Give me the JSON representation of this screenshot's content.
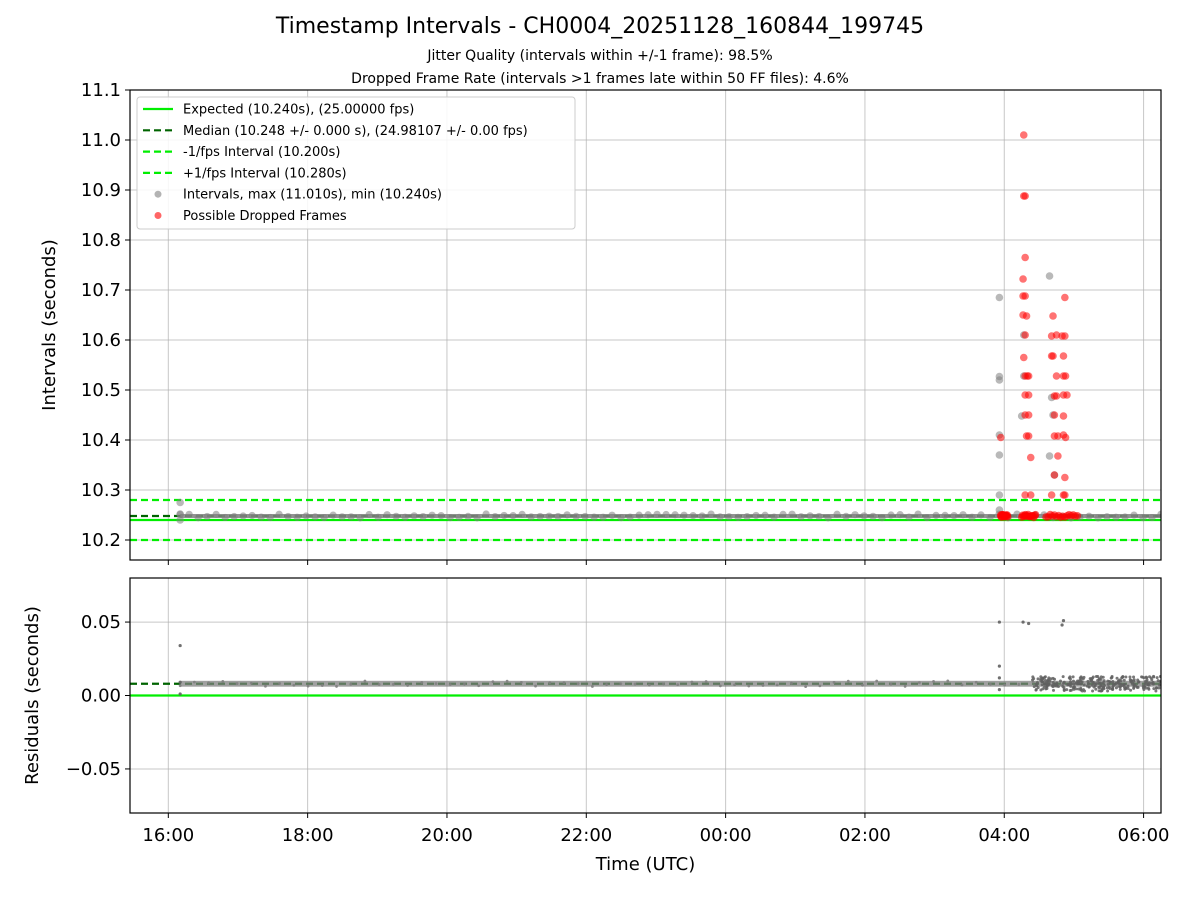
{
  "title": "Timestamp Intervals - CH0004_20251128_160844_199745",
  "subtitles": [
    "Jitter Quality (intervals within +/-1 frame): 98.5%",
    "Dropped Frame Rate (intervals >1 frames late within 50 FF files): 4.6%"
  ],
  "colors": {
    "expected": "#00ee00",
    "median": "#006400",
    "fps_bounds": "#00ee00",
    "intervals": "#808080",
    "dropped": "#ff0000",
    "grid": "#b0b0b0"
  },
  "chart_data": [
    {
      "type": "scatter",
      "name": "intervals",
      "xlabel": "",
      "ylabel": "Intervals (seconds)",
      "x_unit": "hours since 16:00 UTC",
      "xlim": [
        -0.55,
        14.25
      ],
      "ylim": [
        10.16,
        11.1
      ],
      "yticks": [
        10.2,
        10.3,
        10.4,
        10.5,
        10.6,
        10.7,
        10.8,
        10.9,
        11.0,
        11.1
      ],
      "ytick_labels": [
        "10.2",
        "10.3",
        "10.4",
        "10.5",
        "10.6",
        "10.7",
        "10.8",
        "10.9",
        "11.0",
        "11.1"
      ],
      "grid": true,
      "legend_position": "top-left",
      "reference_lines": [
        {
          "name": "Expected (10.240s), (25.00000 fps)",
          "y": 10.24,
          "style": "solid"
        },
        {
          "name": "Median (10.248 +/- 0.000 s), (24.98107 +/- 0.00 fps)",
          "y": 10.248,
          "style": "dashed-dark"
        },
        {
          "name": "-1/fps Interval (10.200s)",
          "y": 10.2,
          "style": "dashed"
        },
        {
          "name": "+1/fps Interval (10.280s)",
          "y": 10.28,
          "style": "dashed"
        }
      ],
      "series": [
        {
          "name": "Intervals, max (11.010s), min (10.240s)",
          "baseline_band": {
            "x_start": 0.17,
            "x_end": 14.25,
            "y_low": 10.244,
            "y_high": 10.252
          },
          "points": [
            [
              0.17,
              10.275
            ],
            [
              0.17,
              10.24
            ],
            [
              0.17,
              10.252
            ],
            [
              11.93,
              10.685
            ],
            [
              11.93,
              10.527
            ],
            [
              11.93,
              10.52
            ],
            [
              11.93,
              10.41
            ],
            [
              11.93,
              10.37
            ],
            [
              11.93,
              10.29
            ],
            [
              11.93,
              10.26
            ],
            [
              12.28,
              10.61
            ],
            [
              12.28,
              10.528
            ],
            [
              12.25,
              10.448
            ],
            [
              12.65,
              10.728
            ],
            [
              12.68,
              10.485
            ],
            [
              12.65,
              10.368
            ],
            [
              12.72,
              10.33
            ],
            [
              12.7,
              10.45
            ]
          ]
        },
        {
          "name": "Possible Dropped Frames",
          "points": [
            [
              12.28,
              11.01
            ],
            [
              12.28,
              10.888
            ],
            [
              12.3,
              10.888
            ],
            [
              12.3,
              10.765
            ],
            [
              12.27,
              10.722
            ],
            [
              12.27,
              10.688
            ],
            [
              12.3,
              10.688
            ],
            [
              12.27,
              10.65
            ],
            [
              12.32,
              10.648
            ],
            [
              12.3,
              10.61
            ],
            [
              12.28,
              10.565
            ],
            [
              12.3,
              10.528
            ],
            [
              12.33,
              10.528
            ],
            [
              12.35,
              10.528
            ],
            [
              12.3,
              10.49
            ],
            [
              12.35,
              10.49
            ],
            [
              12.3,
              10.45
            ],
            [
              12.35,
              10.45
            ],
            [
              12.32,
              10.408
            ],
            [
              12.35,
              10.408
            ],
            [
              12.38,
              10.365
            ],
            [
              12.3,
              10.29
            ],
            [
              12.38,
              10.29
            ],
            [
              11.95,
              10.405
            ],
            [
              12.0,
              10.248
            ],
            [
              11.95,
              10.248
            ],
            [
              12.7,
              10.648
            ],
            [
              12.75,
              10.61
            ],
            [
              12.68,
              10.608
            ],
            [
              12.68,
              10.568
            ],
            [
              12.7,
              10.568
            ],
            [
              12.75,
              10.528
            ],
            [
              12.72,
              10.488
            ],
            [
              12.75,
              10.488
            ],
            [
              12.72,
              10.45
            ],
            [
              12.72,
              10.408
            ],
            [
              12.77,
              10.408
            ],
            [
              12.77,
              10.368
            ],
            [
              12.72,
              10.33
            ],
            [
              12.68,
              10.29
            ],
            [
              12.87,
              10.685
            ],
            [
              12.83,
              10.608
            ],
            [
              12.87,
              10.608
            ],
            [
              12.85,
              10.568
            ],
            [
              12.88,
              10.528
            ],
            [
              12.85,
              10.528
            ],
            [
              12.85,
              10.49
            ],
            [
              12.9,
              10.49
            ],
            [
              12.85,
              10.448
            ],
            [
              12.85,
              10.41
            ],
            [
              12.88,
              10.405
            ],
            [
              12.87,
              10.325
            ],
            [
              12.85,
              10.29
            ],
            [
              12.87,
              10.29
            ]
          ],
          "baseline_clusters": [
            [
              11.95,
              12.05
            ],
            [
              12.25,
              12.45
            ],
            [
              12.6,
              13.05
            ]
          ],
          "baseline_y": 10.248
        }
      ]
    },
    {
      "type": "scatter",
      "name": "residuals",
      "xlabel": "Time (UTC)",
      "ylabel": "Residuals (seconds)",
      "x_unit": "hours since 16:00 UTC",
      "xlim": [
        -0.55,
        14.25
      ],
      "ylim": [
        -0.08,
        0.08
      ],
      "yticks": [
        -0.05,
        0.0,
        0.05
      ],
      "ytick_labels": [
        "−0.05",
        "0.00",
        "0.05"
      ],
      "xticks": [
        0,
        2,
        4,
        6,
        8,
        10,
        12,
        14
      ],
      "xtick_labels": [
        "16:00",
        "18:00",
        "20:00",
        "22:00",
        "00:00",
        "02:00",
        "04:00",
        "06:00"
      ],
      "grid": true,
      "reference_lines": [
        {
          "name": "expected",
          "y": 0.0,
          "style": "solid"
        },
        {
          "name": "median",
          "y": 0.008,
          "style": "dashed-dark"
        }
      ],
      "series": [
        {
          "name": "residuals",
          "baseline_band": {
            "x_start": 0.17,
            "x_end": 14.25,
            "y_low": 0.006,
            "y_high": 0.01
          },
          "noisy_band": {
            "x_start": 12.4,
            "x_end": 14.25,
            "y_low": 0.003,
            "y_high": 0.013
          },
          "points": [
            [
              0.17,
              0.034
            ],
            [
              0.17,
              0.001
            ],
            [
              0.17,
              0.009
            ],
            [
              11.93,
              0.05
            ],
            [
              11.93,
              0.02
            ],
            [
              11.93,
              0.004
            ],
            [
              11.93,
              0.012
            ],
            [
              12.27,
              0.05
            ],
            [
              12.35,
              0.049
            ],
            [
              12.85,
              0.051
            ],
            [
              12.83,
              0.048
            ]
          ]
        }
      ]
    }
  ],
  "legend": [
    {
      "label": "Expected (10.240s), (25.00000 fps)",
      "kind": "line-solid"
    },
    {
      "label": "Median (10.248 +/- 0.000 s), (24.98107 +/- 0.00 fps)",
      "kind": "line-dashed-dark"
    },
    {
      "label": "-1/fps Interval (10.200s)",
      "kind": "line-dashed"
    },
    {
      "label": "+1/fps Interval (10.280s)",
      "kind": "line-dashed"
    },
    {
      "label": "Intervals, max (11.010s), min (10.240s)",
      "kind": "marker-gray"
    },
    {
      "label": "Possible Dropped Frames",
      "kind": "marker-red"
    }
  ]
}
